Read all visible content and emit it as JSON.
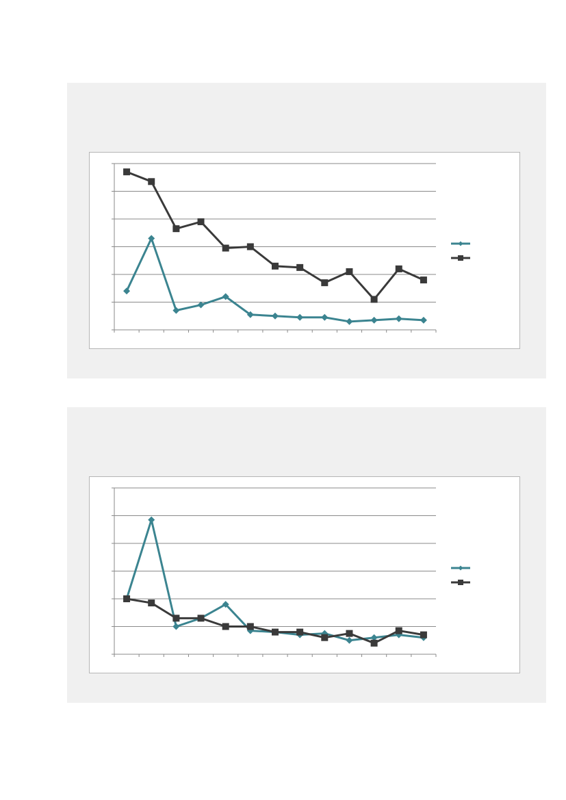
{
  "colors": {
    "series_a": "#3b8490",
    "series_b": "#3a3a3a",
    "gridline": "#8a8a8a",
    "panel_background": "#f0f0f0"
  },
  "chart_data": [
    {
      "type": "line",
      "title": "",
      "xlabel": "",
      "ylabel": "",
      "x": [
        1,
        2,
        3,
        4,
        5,
        6,
        7,
        8,
        9,
        10,
        11,
        12,
        13
      ],
      "ylim": [
        0,
        6
      ],
      "grid": true,
      "legend": "right",
      "series": [
        {
          "values": [
            1.4,
            3.3,
            0.7,
            0.9,
            1.2,
            0.55,
            0.5,
            0.45,
            0.45,
            0.3,
            0.35,
            0.4,
            0.35
          ],
          "marker": "diamond"
        },
        {
          "values": [
            5.7,
            5.35,
            3.65,
            3.9,
            2.95,
            3.0,
            2.3,
            2.25,
            1.7,
            2.1,
            1.1,
            2.2,
            1.8
          ],
          "marker": "square"
        }
      ]
    },
    {
      "type": "line",
      "title": "",
      "xlabel": "",
      "ylabel": "",
      "x": [
        1,
        2,
        3,
        4,
        5,
        6,
        7,
        8,
        9,
        10,
        11,
        12,
        13
      ],
      "ylim": [
        0,
        6
      ],
      "grid": true,
      "legend": "right",
      "series": [
        {
          "values": [
            2.0,
            4.85,
            1.0,
            1.3,
            1.8,
            0.85,
            0.8,
            0.7,
            0.75,
            0.5,
            0.6,
            0.7,
            0.6
          ],
          "marker": "diamond"
        },
        {
          "values": [
            2.0,
            1.85,
            1.3,
            1.3,
            1.0,
            1.0,
            0.8,
            0.8,
            0.6,
            0.75,
            0.4,
            0.85,
            0.7
          ],
          "marker": "square"
        }
      ]
    }
  ]
}
